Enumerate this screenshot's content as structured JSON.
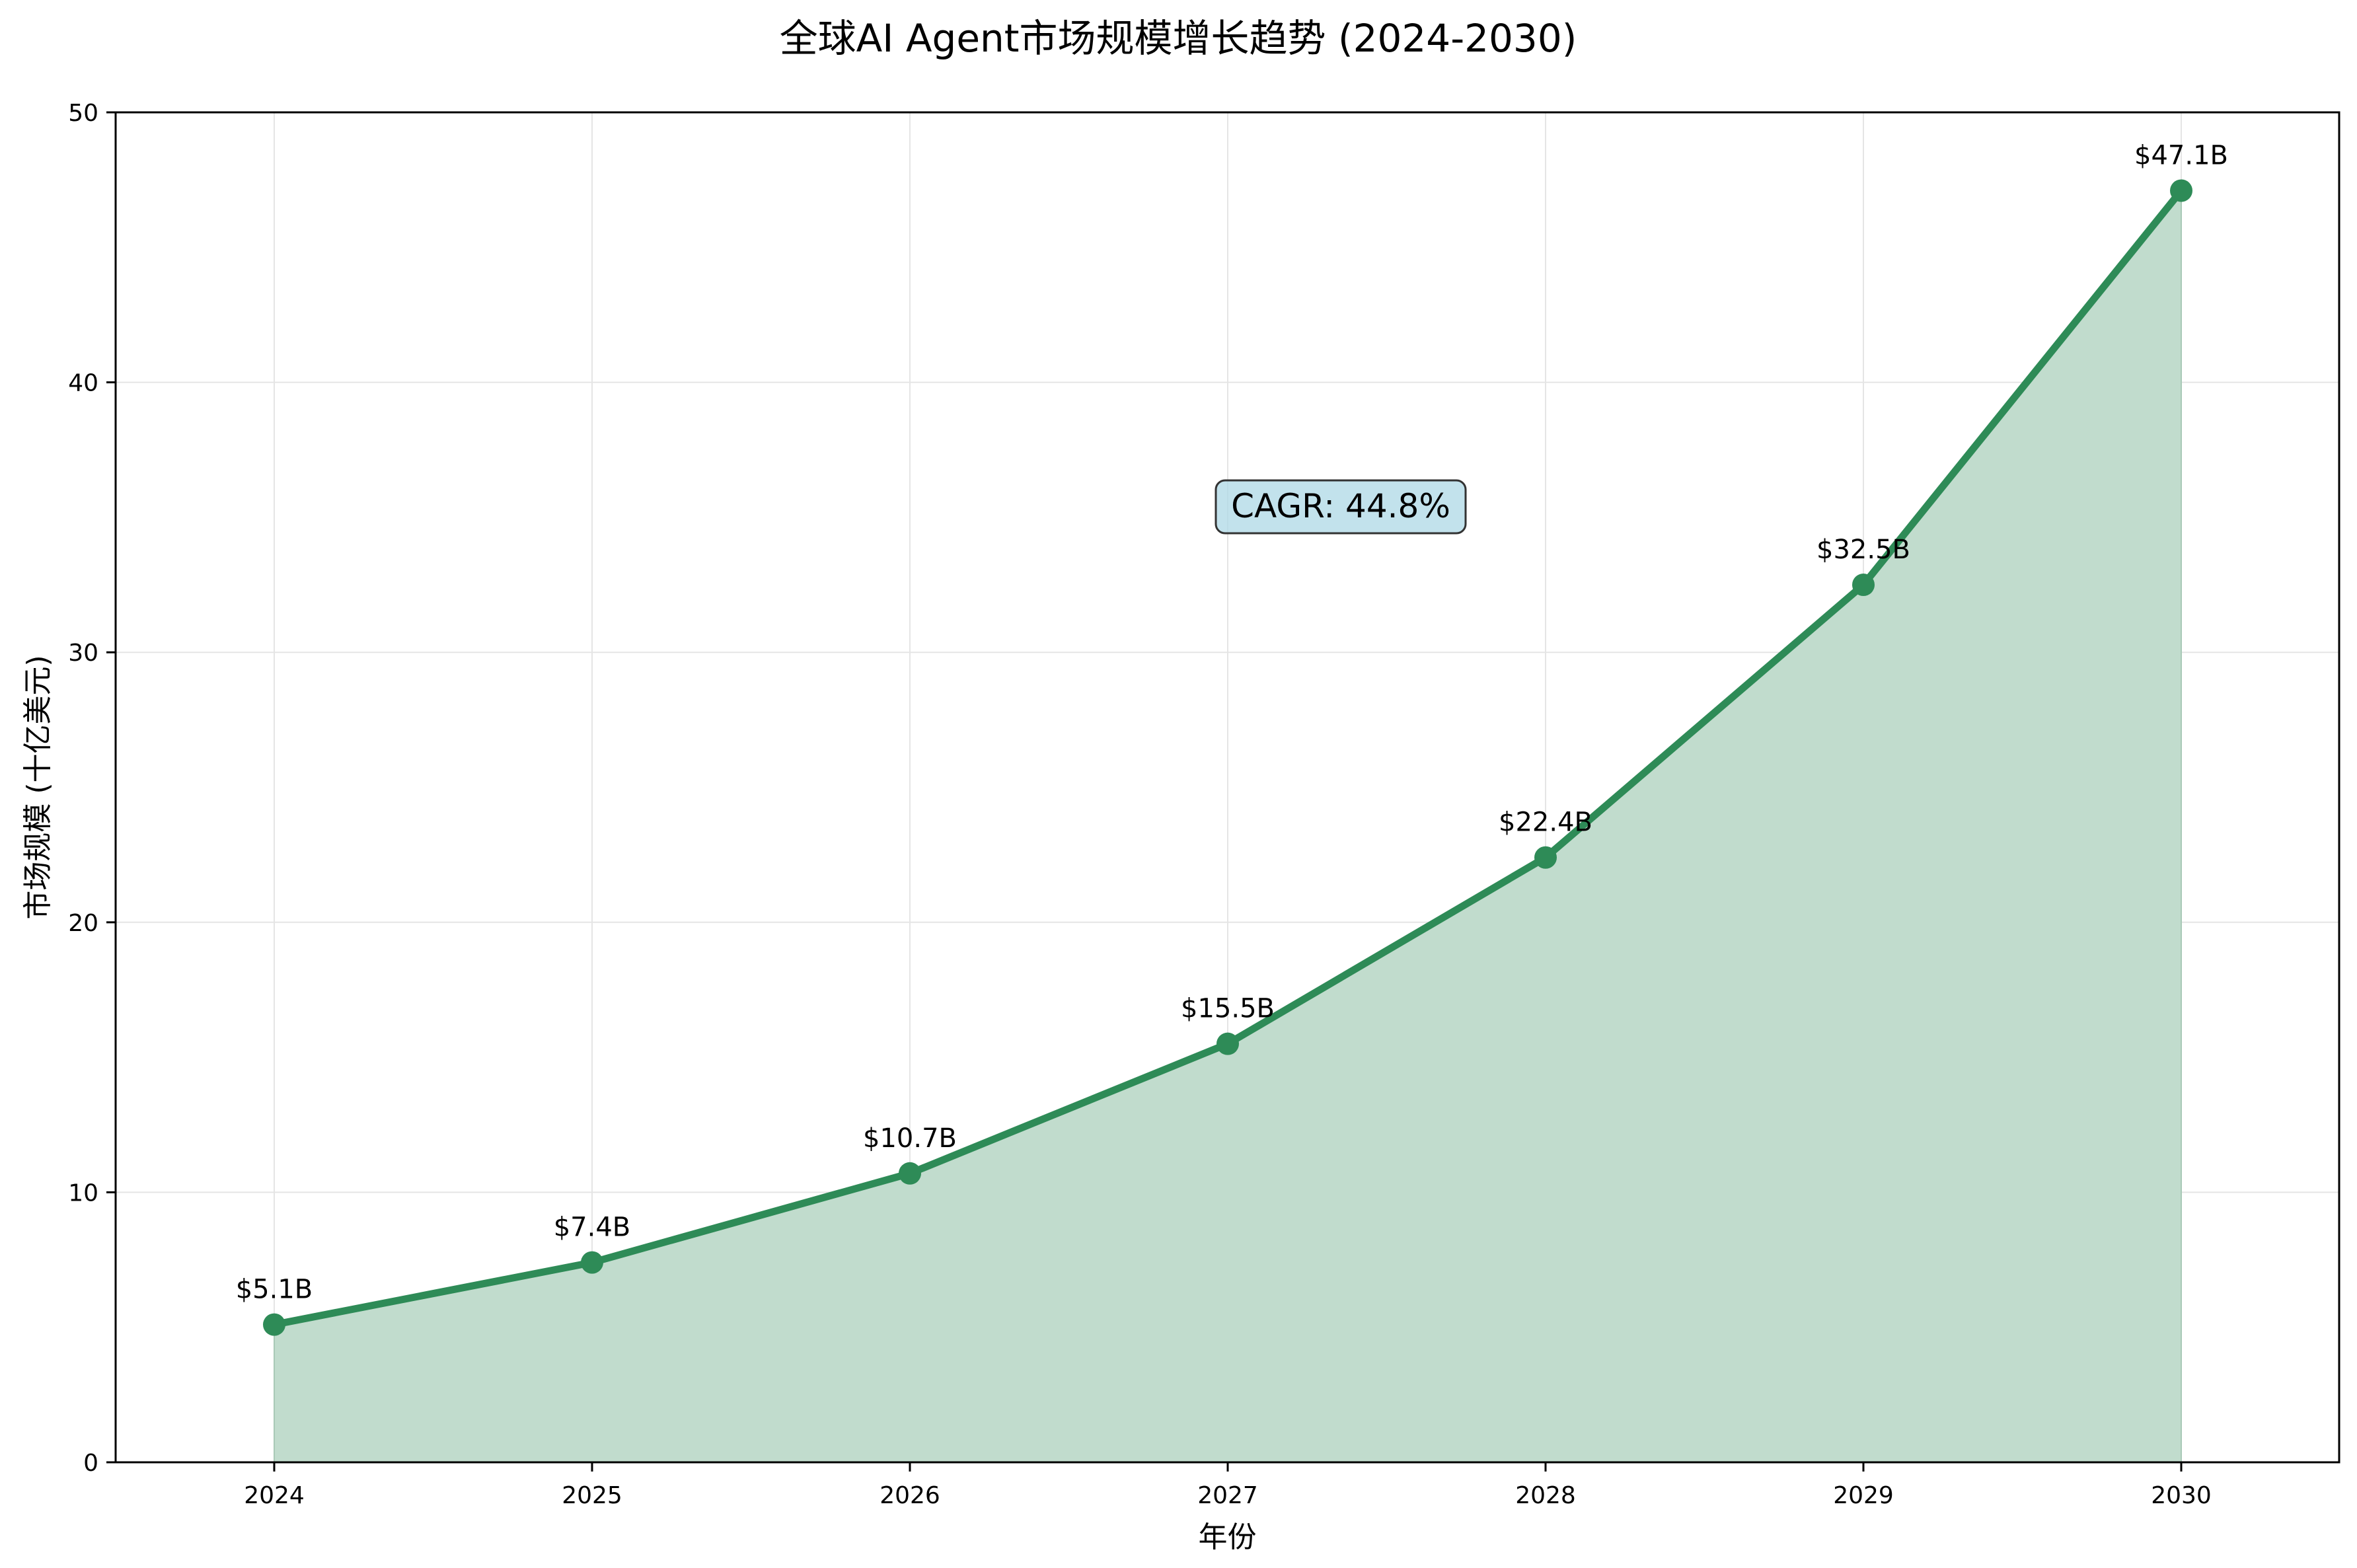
{
  "chart_data": {
    "type": "area",
    "title": "全球AI Agent市场规模增长趋势 (2024-2030)",
    "xlabel": "年份",
    "ylabel": "市场规模 (十亿美元)",
    "categories": [
      "2024",
      "2025",
      "2026",
      "2027",
      "2028",
      "2029",
      "2030"
    ],
    "series": [
      {
        "values": [
          5.1,
          7.4,
          10.7,
          15.5,
          22.4,
          32.5,
          47.1
        ],
        "labels": [
          "$5.1B",
          "$7.4B",
          "$10.7B",
          "$15.5B",
          "$22.4B",
          "$32.5B",
          "$47.1B"
        ]
      }
    ],
    "ylim": [
      0,
      50
    ],
    "yticks": [
      0,
      10,
      20,
      30,
      40,
      50
    ],
    "grid": true,
    "annotation": "CAGR: 44.8%",
    "colors": {
      "line": "#2e8b57",
      "fill": "#c1dccd",
      "annotation_bg": "#add8e6",
      "grid": "#e5e5e5"
    }
  }
}
